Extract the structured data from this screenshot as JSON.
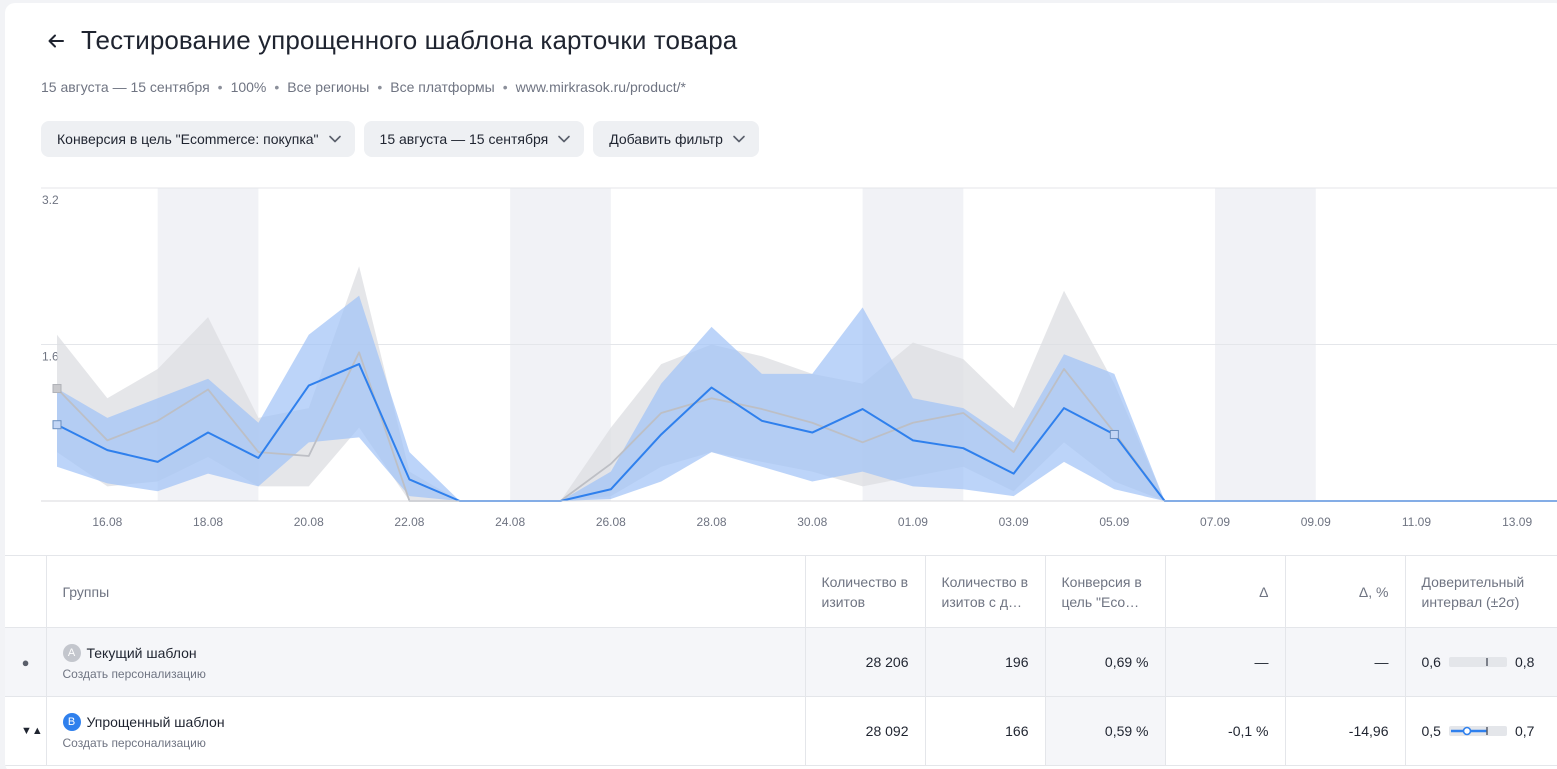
{
  "header": {
    "title": "Тестирование упрощенного шаблона карточки товара"
  },
  "meta": {
    "period": "15 августа — 15 сентября",
    "traffic": "100%",
    "regions": "Все регионы",
    "platforms": "Все платформы",
    "url": "www.mirkrasok.ru/product/*",
    "separator": "•"
  },
  "filters": {
    "goal": "Конверсия в цель \"Ecommerce: покупка\"",
    "period": "15 августа — 15 сентября",
    "add": "Добавить фильтр"
  },
  "colors": {
    "accent": "#2f80ed",
    "band_b": "#9fc2f7",
    "band_a": "#dcdde2",
    "line_a": "#bdbfc5"
  },
  "chart_data": {
    "type": "line",
    "x": [
      "15.08",
      "16.08",
      "17.08",
      "18.08",
      "19.08",
      "20.08",
      "21.08",
      "22.08",
      "23.08",
      "24.08",
      "25.08",
      "26.08",
      "27.08",
      "28.08",
      "29.08",
      "30.08",
      "31.08",
      "01.09",
      "02.09",
      "03.09",
      "04.09",
      "05.09",
      "06.09",
      "07.09",
      "08.09",
      "09.09",
      "10.09",
      "11.09",
      "12.09",
      "13.09",
      "14.09",
      "15.09"
    ],
    "tick_labels": [
      "16.08",
      "18.08",
      "20.08",
      "22.08",
      "24.08",
      "26.08",
      "28.08",
      "30.08",
      "01.09",
      "03.09",
      "05.09",
      "07.09",
      "09.09",
      "11.09",
      "13.09"
    ],
    "y_ticks": [
      "3.2",
      "1.6"
    ],
    "ylim": [
      0,
      3.2
    ],
    "weekend_bands": [
      [
        "17.08",
        "19.08"
      ],
      [
        "24.08",
        "26.08"
      ],
      [
        "31.08",
        "02.09"
      ],
      [
        "07.09",
        "09.09"
      ]
    ],
    "series": [
      {
        "name": "Текущий шаблон",
        "values": [
          1.15,
          0.62,
          0.82,
          1.14,
          0.5,
          0.46,
          1.52,
          0.0,
          0.0,
          0.0,
          0.0,
          0.38,
          0.9,
          1.05,
          0.94,
          0.8,
          0.6,
          0.8,
          0.9,
          0.5,
          1.35,
          0.7,
          0.0,
          0.0,
          0.0,
          0.0,
          0.0,
          0.0,
          0.0,
          0.0,
          0.0,
          0.0
        ],
        "lower": [
          0.5,
          0.15,
          0.2,
          0.45,
          0.15,
          0.15,
          0.75,
          0.0,
          0.0,
          0.0,
          0.0,
          0.05,
          0.35,
          0.5,
          0.4,
          0.3,
          0.15,
          0.25,
          0.35,
          0.1,
          0.6,
          0.2,
          0.0,
          0.0,
          0.0,
          0.0,
          0.0,
          0.0,
          0.0,
          0.0,
          0.0,
          0.0
        ],
        "upper": [
          1.7,
          1.05,
          1.35,
          1.88,
          0.85,
          0.95,
          2.4,
          0.3,
          0.0,
          0.0,
          0.0,
          0.75,
          1.4,
          1.6,
          1.48,
          1.3,
          1.2,
          1.62,
          1.45,
          0.95,
          2.15,
          1.2,
          0.0,
          0.0,
          0.0,
          0.0,
          0.0,
          0.0,
          0.0,
          0.0,
          0.0,
          0.0
        ]
      },
      {
        "name": "Упрощенный шаблон",
        "values": [
          0.78,
          0.52,
          0.4,
          0.7,
          0.44,
          1.18,
          1.4,
          0.22,
          0.0,
          0.0,
          0.0,
          0.12,
          0.68,
          1.16,
          0.82,
          0.7,
          0.94,
          0.62,
          0.54,
          0.28,
          0.95,
          0.68,
          0.0,
          0.0,
          0.0,
          0.0,
          0.0,
          0.0,
          0.0,
          0.0,
          0.0,
          0.0
        ],
        "lower": [
          0.35,
          0.18,
          0.1,
          0.28,
          0.15,
          0.6,
          0.65,
          0.05,
          0.0,
          0.0,
          0.0,
          0.02,
          0.2,
          0.5,
          0.35,
          0.2,
          0.3,
          0.15,
          0.12,
          0.05,
          0.4,
          0.12,
          0.0,
          0.0,
          0.0,
          0.0,
          0.0,
          0.0,
          0.0,
          0.0,
          0.0,
          0.0
        ],
        "upper": [
          1.15,
          0.85,
          1.05,
          1.25,
          0.8,
          1.7,
          2.1,
          0.5,
          0.0,
          0.0,
          0.0,
          0.3,
          1.2,
          1.78,
          1.3,
          1.3,
          1.98,
          1.05,
          0.95,
          0.6,
          1.5,
          1.3,
          0.0,
          0.0,
          0.0,
          0.0,
          0.0,
          0.0,
          0.0,
          0.0,
          0.0,
          0.0
        ]
      }
    ]
  },
  "table": {
    "headers": {
      "groups": "Группы",
      "visits": "Количество в изитов",
      "visits_goal": "Количество в изитов с д…",
      "conversion": "Конверсия в цель \"Eco…",
      "delta": "Δ",
      "delta_pct": "Δ, %",
      "ci": "Доверительный интервал (±2σ)"
    },
    "rows": [
      {
        "marker": "●",
        "badge": "A",
        "name": "Текущий шаблон",
        "sub": "Создать персонализацию",
        "visits": "28 206",
        "visits_goal": "196",
        "conversion": "0,69 %",
        "delta": "—",
        "delta_pct": "—",
        "ci_low": "0,6",
        "ci_high": "0,8"
      },
      {
        "marker": "▼▲",
        "badge": "B",
        "name": "Упрощенный шаблон",
        "sub": "Создать персонализацию",
        "visits": "28 092",
        "visits_goal": "166",
        "conversion": "0,59 %",
        "delta": "-0,1 %",
        "delta_pct": "-14,96",
        "ci_low": "0,5",
        "ci_high": "0,7"
      }
    ]
  }
}
